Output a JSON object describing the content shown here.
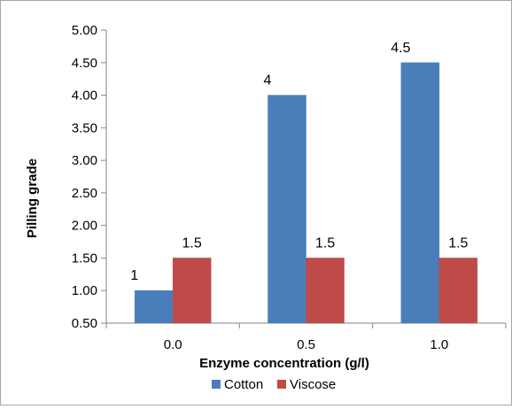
{
  "chart_data": {
    "type": "bar",
    "title": "",
    "xlabel": "Enzyme  concentration (g/l)",
    "ylabel": "Pilling grade",
    "categories": [
      "0.0",
      "0.5",
      "1.0"
    ],
    "series": [
      {
        "name": "Cotton",
        "color": "#4a7ebb",
        "values": [
          1,
          4,
          4.5
        ],
        "labels": [
          "1",
          "4",
          "4.5"
        ]
      },
      {
        "name": "Viscose",
        "color": "#be4b48",
        "values": [
          1.5,
          1.5,
          1.5
        ],
        "labels": [
          "1.5",
          "1.5",
          "1.5"
        ]
      }
    ],
    "ylim": [
      0.5,
      5.0
    ],
    "yticks": [
      "0.50",
      "1.00",
      "1.50",
      "2.00",
      "2.50",
      "3.00",
      "3.50",
      "4.00",
      "4.50",
      "5.00"
    ],
    "grid": false,
    "legend_position": "bottom"
  }
}
